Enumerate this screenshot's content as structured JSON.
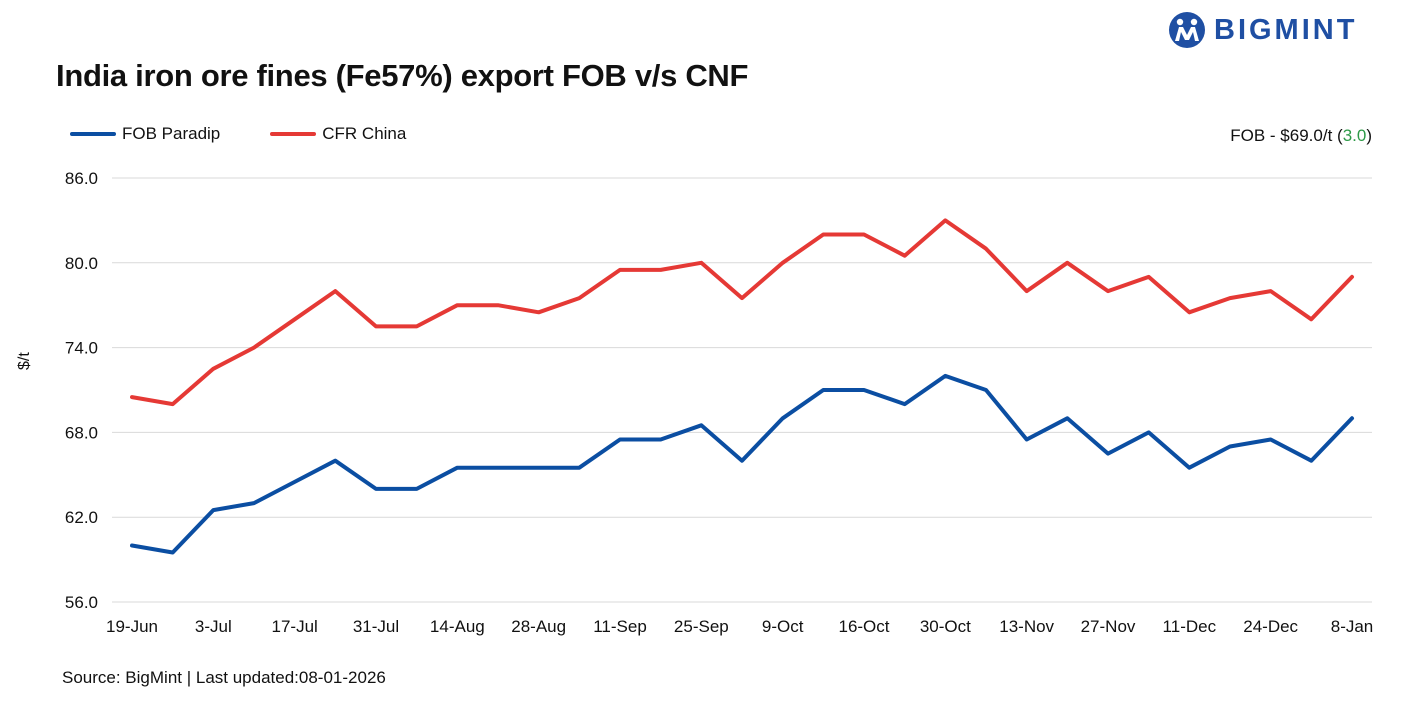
{
  "header": {
    "title": "India iron ore fines (Fe57%) export FOB v/s CNF",
    "brand": "BIGMINT"
  },
  "note": {
    "prefix": "FOB - $69.0/t (",
    "change": "3.0",
    "suffix": ")"
  },
  "footer": {
    "source": "Source: BigMint | Last updated:08-01-2026"
  },
  "colors": {
    "fob": "#0b4ea2",
    "cfr": "#e53935",
    "grid": "#d9d9d9",
    "brand": "#1f4fa3",
    "change": "#2e9a48"
  },
  "chart_data": {
    "type": "line",
    "ylabel": "$/t",
    "ylim": [
      56,
      86
    ],
    "yticks": [
      "86.0",
      "80.0",
      "74.0",
      "68.0",
      "62.0",
      "56.0"
    ],
    "ytick_values": [
      86,
      80,
      74,
      68,
      62,
      56
    ],
    "xtick_labels": [
      "19-Jun",
      "3-Jul",
      "17-Jul",
      "31-Jul",
      "14-Aug",
      "28-Aug",
      "11-Sep",
      "25-Sep",
      "9-Oct",
      "16-Oct",
      "30-Oct",
      "13-Nov",
      "27-Nov",
      "11-Dec",
      "24-Dec",
      "8-Jan"
    ],
    "legend_position": "top-left",
    "grid": true,
    "series": [
      {
        "name": "FOB Paradip",
        "values": [
          60.0,
          59.5,
          62.5,
          63.0,
          64.5,
          66.0,
          64.0,
          64.0,
          65.5,
          65.5,
          65.5,
          65.5,
          67.5,
          67.5,
          68.5,
          66.0,
          69.0,
          71.0,
          71.0,
          70.0,
          72.0,
          71.0,
          67.5,
          69.0,
          66.5,
          68.0,
          65.5,
          67.0,
          67.5,
          66.0,
          69.0
        ]
      },
      {
        "name": "CFR China",
        "values": [
          70.5,
          70.0,
          72.5,
          74.0,
          76.0,
          78.0,
          75.5,
          75.5,
          77.0,
          77.0,
          76.5,
          77.5,
          79.5,
          79.5,
          80.0,
          77.5,
          80.0,
          82.0,
          82.0,
          80.5,
          83.0,
          81.0,
          78.0,
          80.0,
          78.0,
          79.0,
          76.5,
          77.5,
          78.0,
          76.0,
          79.0
        ]
      }
    ]
  }
}
